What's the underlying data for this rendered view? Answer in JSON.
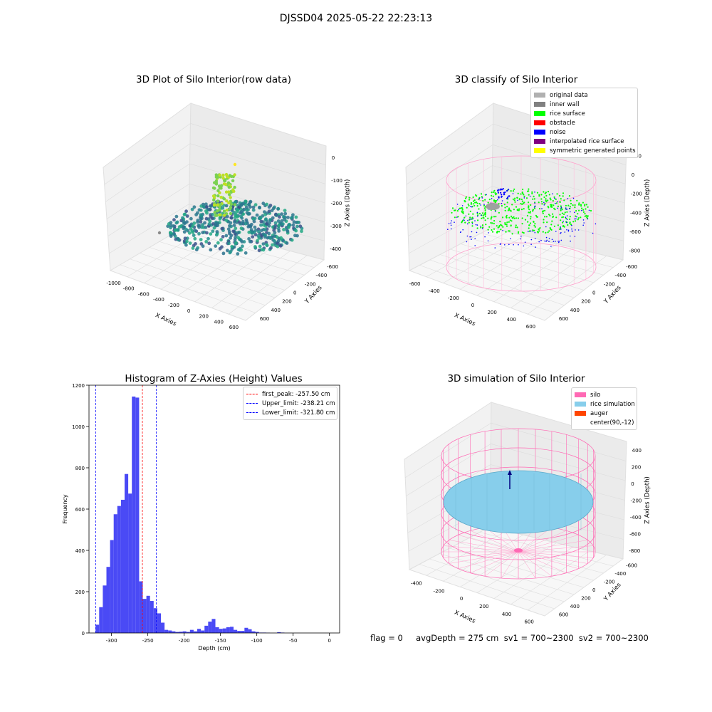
{
  "suptitle": "DJSSD04 2025-05-22 22:23:13",
  "panels": {
    "raw": {
      "title": "3D Plot of Silo Interior(row data)",
      "xlabel": "X Axies",
      "ylabel": "Y Axies",
      "zlabel": "Z Axies (Depth)",
      "xticks": [
        "-1000",
        "-800",
        "-600",
        "-400",
        "-200",
        "0",
        "200",
        "400",
        "600"
      ],
      "yticks": [
        "-600",
        "-400",
        "-200",
        "0",
        "200",
        "400",
        "600"
      ],
      "zticks": [
        "0",
        "-100",
        "-200",
        "-300",
        "-400"
      ]
    },
    "classify": {
      "title": "3D classify of Silo Interior",
      "xlabel": "X Axies",
      "ylabel": "Y Axies",
      "zlabel": "Z Axies (Depth)",
      "xticks": [
        "-600",
        "-400",
        "-200",
        "0",
        "200",
        "400",
        "600"
      ],
      "yticks": [
        "-600",
        "-400",
        "-200",
        "0",
        "200",
        "400",
        "600"
      ],
      "zticks": [
        "200",
        "0",
        "-200",
        "-400",
        "-600",
        "-800"
      ],
      "legend": [
        {
          "label": "original data",
          "color": "#b0b0b0"
        },
        {
          "label": "inner wall",
          "color": "#808080"
        },
        {
          "label": "rice surface",
          "color": "#00ff00"
        },
        {
          "label": "obstacle",
          "color": "#ff0000"
        },
        {
          "label": "noise",
          "color": "#0000ff"
        },
        {
          "label": "interpolated rice surface",
          "color": "#800080"
        },
        {
          "label": "symmetric generated points",
          "color": "#ffff00"
        }
      ]
    },
    "simulation": {
      "title": "3D simulation of Silo Interior",
      "xlabel": "X Axies",
      "ylabel": "Y Axies",
      "zlabel": "Z Axies (Depth)",
      "xticks": [
        "-400",
        "-200",
        "0",
        "200",
        "400",
        "600"
      ],
      "yticks": [
        "-600",
        "-400",
        "-200",
        "0",
        "200",
        "400",
        "600"
      ],
      "zticks": [
        "400",
        "200",
        "0",
        "-200",
        "-400",
        "-600",
        "-800"
      ],
      "legend": [
        {
          "label": "silo",
          "color": "#ff69b4"
        },
        {
          "label": "rice simulation",
          "color": "#87ceeb"
        },
        {
          "label": "auger",
          "color": "#ff4500"
        },
        {
          "label": "center(90,-12)",
          "color": "#ffffff"
        }
      ]
    }
  },
  "footer": "flag = 0     avgDepth = 275 cm  sv1 = 700~2300  sv2 = 700~2300",
  "chart_data": {
    "type": "bar",
    "title": "Histogram of Z-Axies (Height) Values",
    "xlabel": "Depth (cm)",
    "ylabel": "Frequency",
    "xlim": [
      -331,
      14
    ],
    "ylim": [
      0,
      1200
    ],
    "xticks": [
      -300,
      -250,
      -200,
      -150,
      -100,
      -50,
      0
    ],
    "yticks": [
      0,
      200,
      400,
      600,
      800,
      1000,
      1200
    ],
    "bin_width": 5,
    "bin_start": -322,
    "values": [
      40,
      125,
      230,
      320,
      450,
      575,
      615,
      645,
      770,
      675,
      1145,
      1140,
      250,
      165,
      180,
      155,
      120,
      95,
      50,
      15,
      12,
      8,
      5,
      6,
      8,
      5,
      15,
      8,
      20,
      12,
      35,
      55,
      68,
      28,
      20,
      22,
      28,
      30,
      15,
      10,
      10,
      25,
      18,
      8,
      5,
      2,
      2,
      1,
      0,
      0,
      4,
      2
    ],
    "bar_color": "#4a4af5",
    "lines": [
      {
        "label": "first_peak: -257.50 cm",
        "x": -257.5,
        "color": "#ff0000"
      },
      {
        "label": "Upper_limit: -238.21 cm",
        "x": -238.21,
        "color": "#0000ff"
      },
      {
        "label": "Lower_limit: -321.80 cm",
        "x": -321.8,
        "color": "#0000ff"
      }
    ]
  }
}
